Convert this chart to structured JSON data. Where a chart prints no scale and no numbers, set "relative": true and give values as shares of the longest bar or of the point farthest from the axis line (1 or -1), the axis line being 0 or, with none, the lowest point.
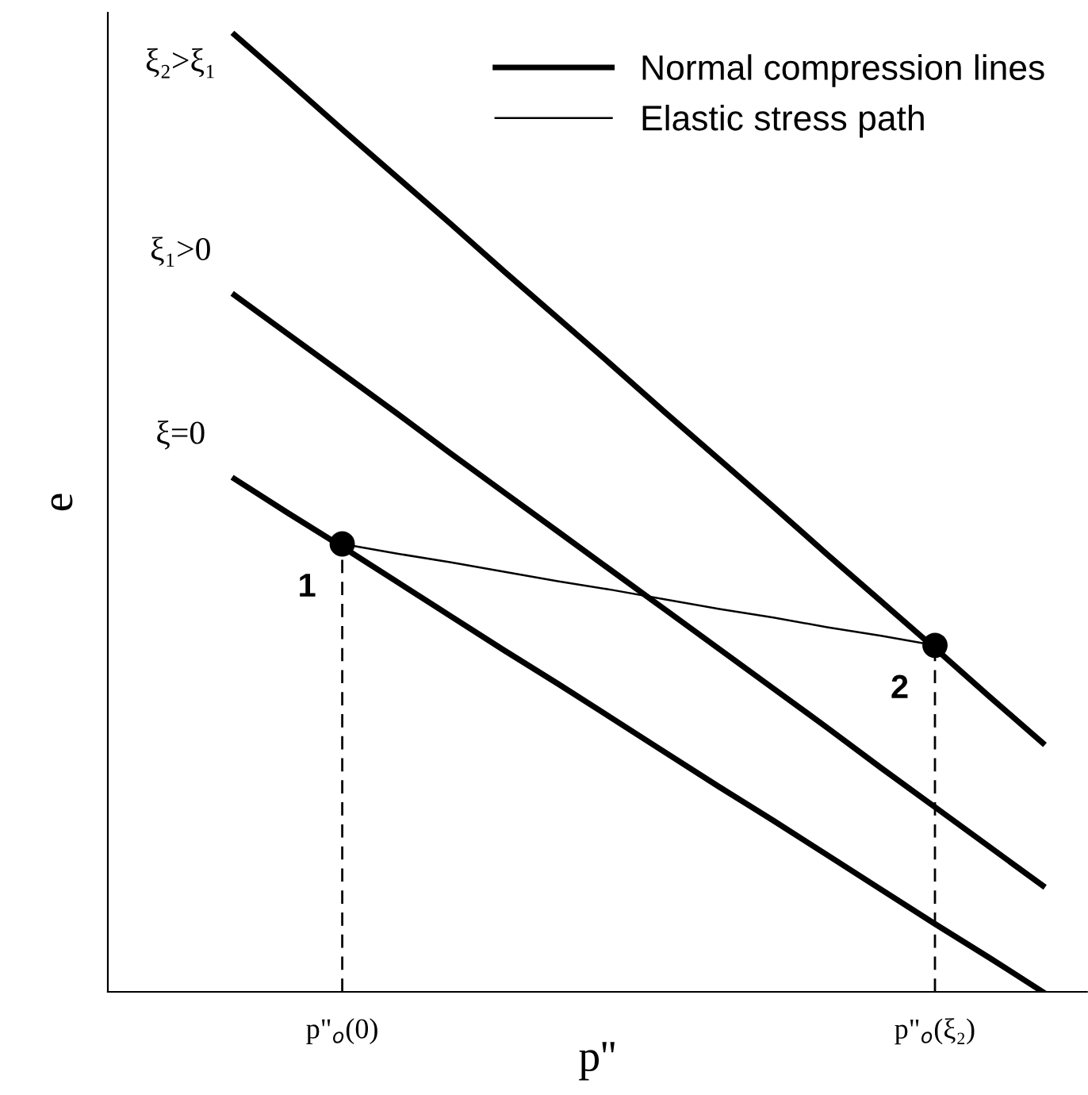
{
  "chart_data": {
    "type": "line",
    "relative": true,
    "xlabel": "p''",
    "ylabel": "e",
    "legend": "top right",
    "grid": false,
    "marker": "none",
    "categories": [
      null,
      null,
      "p\"$_{o}$(0)",
      null,
      null,
      null,
      null,
      null,
      null,
      null,
      null,
      null,
      null,
      "p\"$_{o}$(ξ₂)",
      null,
      null
    ],
    "series": [
      {
        "name": "Normal compression lines",
        "color": "#000000",
        "values": [
          1,
          0.951,
          0.901,
          0.852,
          0.803,
          0.753,
          0.704,
          0.655,
          0.605,
          0.556,
          0.507,
          0.457,
          0.408,
          0.359,
          0.309,
          0.26
        ]
      },
      {
        "color": "#000000",
        "values": [
          0.728,
          0.687,
          0.646,
          0.605,
          0.563,
          0.522,
          0.481,
          0.44,
          0.399,
          0.358,
          0.317,
          0.276,
          0.234,
          0.193,
          0.152,
          0.111
        ]
      },
      {
        "color": "#000000",
        "values": [
          0.536,
          0.5,
          0.465,
          0.429,
          0.393,
          0.357,
          0.322,
          0.286,
          0.25,
          0.214,
          0.179,
          0.143,
          0.107,
          0.071,
          0.036,
          0
        ]
      },
      {
        "name": "Elastic stress path",
        "color": "#000000",
        "values": [
          null,
          null,
          0.468,
          0.458,
          0.449,
          0.439,
          0.429,
          0.42,
          0.41,
          0.4,
          0.391,
          0.381,
          0.372,
          0.362,
          null,
          null
        ]
      },
      {
        "type": "lollipop",
        "marker": "circle",
        "color": "#000000",
        "line_style": "dashed",
        "values": [
          null,
          null,
          0.468,
          null,
          null,
          null,
          null,
          null,
          null,
          null,
          null,
          null,
          null,
          0.362,
          null,
          null
        ]
      }
    ],
    "annotations": [
      "ξ₂>ξ₁",
      "ξ₁>0",
      "ξ=0",
      "1",
      "2"
    ]
  }
}
